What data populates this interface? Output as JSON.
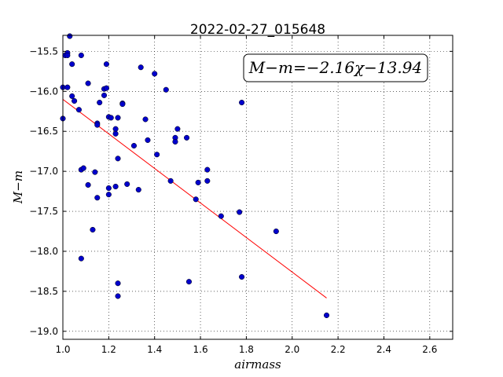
{
  "chart_data": {
    "type": "scatter",
    "title": "2022-02-27_015648",
    "xlabel": "airmass",
    "ylabel": "M−m",
    "xlim": [
      1.0,
      2.7
    ],
    "ylim": [
      -19.1,
      -15.3
    ],
    "y_inverted": true,
    "x_ticks": [
      1.0,
      1.2,
      1.4,
      1.6,
      1.8,
      2.0,
      2.2,
      2.4,
      2.6
    ],
    "x_tick_labels": [
      "1.0",
      "1.2",
      "1.4",
      "1.6",
      "1.8",
      "2.0",
      "2.2",
      "2.4",
      "2.6"
    ],
    "y_ticks": [
      -15.5,
      -16.0,
      -16.5,
      -17.0,
      -17.5,
      -18.0,
      -18.5,
      -19.0
    ],
    "y_tick_labels": [
      "−15.5",
      "−16.0",
      "−16.5",
      "−17.0",
      "−17.5",
      "−18.0",
      "−18.5",
      "−19.0"
    ],
    "grid": true,
    "annotation": "M−m=−2.16χ−13.94",
    "fit_line": {
      "slope": -2.16,
      "intercept": -13.94,
      "x_range": [
        1.0,
        2.15
      ],
      "color": "#ff0000"
    },
    "point_color": "#0000cc",
    "points": [
      {
        "x": 1.0,
        "y": -15.95
      },
      {
        "x": 1.0,
        "y": -16.34
      },
      {
        "x": 1.01,
        "y": -15.55
      },
      {
        "x": 1.02,
        "y": -15.52
      },
      {
        "x": 1.02,
        "y": -15.55
      },
      {
        "x": 1.03,
        "y": -15.31
      },
      {
        "x": 1.04,
        "y": -15.66
      },
      {
        "x": 1.02,
        "y": -15.95
      },
      {
        "x": 1.04,
        "y": -16.06
      },
      {
        "x": 1.05,
        "y": -16.12
      },
      {
        "x": 1.07,
        "y": -16.23
      },
      {
        "x": 1.08,
        "y": -15.55
      },
      {
        "x": 1.11,
        "y": -15.9
      },
      {
        "x": 1.08,
        "y": -16.98
      },
      {
        "x": 1.09,
        "y": -16.96
      },
      {
        "x": 1.11,
        "y": -17.17
      },
      {
        "x": 1.08,
        "y": -18.09
      },
      {
        "x": 1.13,
        "y": -17.73
      },
      {
        "x": 1.14,
        "y": -17.01
      },
      {
        "x": 1.15,
        "y": -17.33
      },
      {
        "x": 1.15,
        "y": -16.4
      },
      {
        "x": 1.15,
        "y": -16.42
      },
      {
        "x": 1.16,
        "y": -16.14
      },
      {
        "x": 1.18,
        "y": -16.05
      },
      {
        "x": 1.18,
        "y": -15.97
      },
      {
        "x": 1.19,
        "y": -15.96
      },
      {
        "x": 1.19,
        "y": -15.66
      },
      {
        "x": 1.2,
        "y": -16.32
      },
      {
        "x": 1.21,
        "y": -16.33
      },
      {
        "x": 1.2,
        "y": -17.21
      },
      {
        "x": 1.2,
        "y": -17.29
      },
      {
        "x": 1.23,
        "y": -17.19
      },
      {
        "x": 1.23,
        "y": -16.47
      },
      {
        "x": 1.23,
        "y": -16.53
      },
      {
        "x": 1.24,
        "y": -16.33
      },
      {
        "x": 1.24,
        "y": -16.84
      },
      {
        "x": 1.26,
        "y": -16.15
      },
      {
        "x": 1.26,
        "y": -16.16
      },
      {
        "x": 1.28,
        "y": -17.16
      },
      {
        "x": 1.24,
        "y": -18.4
      },
      {
        "x": 1.24,
        "y": -18.56
      },
      {
        "x": 1.31,
        "y": -16.68
      },
      {
        "x": 1.34,
        "y": -15.7
      },
      {
        "x": 1.33,
        "y": -17.23
      },
      {
        "x": 1.36,
        "y": -16.35
      },
      {
        "x": 1.37,
        "y": -16.61
      },
      {
        "x": 1.4,
        "y": -15.78
      },
      {
        "x": 1.41,
        "y": -16.79
      },
      {
        "x": 1.45,
        "y": -15.98
      },
      {
        "x": 1.47,
        "y": -17.12
      },
      {
        "x": 1.49,
        "y": -16.58
      },
      {
        "x": 1.49,
        "y": -16.63
      },
      {
        "x": 1.5,
        "y": -16.47
      },
      {
        "x": 1.54,
        "y": -16.58
      },
      {
        "x": 1.58,
        "y": -17.35
      },
      {
        "x": 1.59,
        "y": -17.14
      },
      {
        "x": 1.63,
        "y": -16.98
      },
      {
        "x": 1.63,
        "y": -17.12
      },
      {
        "x": 1.55,
        "y": -18.38
      },
      {
        "x": 1.69,
        "y": -17.56
      },
      {
        "x": 1.77,
        "y": -17.51
      },
      {
        "x": 1.78,
        "y": -16.14
      },
      {
        "x": 1.78,
        "y": -18.32
      },
      {
        "x": 1.93,
        "y": -17.75
      },
      {
        "x": 2.15,
        "y": -18.8
      }
    ]
  }
}
